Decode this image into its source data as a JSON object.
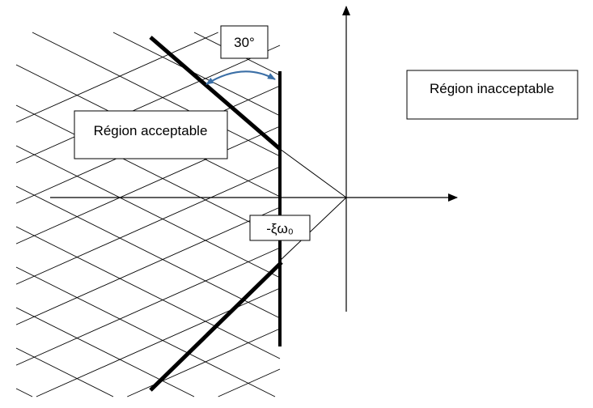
{
  "labels": {
    "angle": "30°",
    "acceptable_region": "Région acceptable",
    "unacceptable_region": "Région inacceptable",
    "boundary": "-ξω₀"
  },
  "colors": {
    "lines": "#000000",
    "angle_arrow": "#3b6fa6",
    "background": "#ffffff"
  }
}
